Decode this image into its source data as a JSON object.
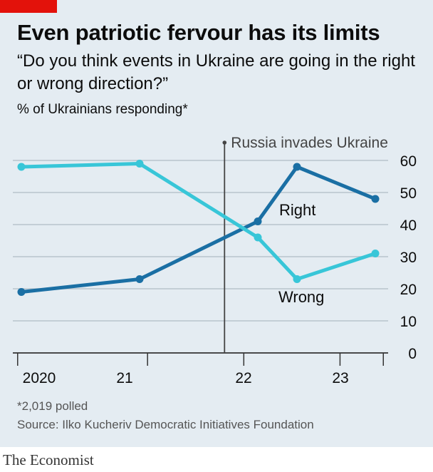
{
  "header": {
    "title": "Even patriotic fervour has its limits",
    "subtitle": "“Do you think events in Ukraine are going in the right or wrong direction?”",
    "unit_note": "% of Ukrainians responding*"
  },
  "footer": {
    "footnote": "*2,019 polled",
    "source": "Source: Ilko Kucheriv Democratic Initiatives Foundation",
    "logo": "The Economist"
  },
  "colors": {
    "right": "#1a6fa4",
    "wrong": "#38c6d8",
    "background": "#e4ecf2",
    "grid": "#b8c3cc",
    "accent": "#e3120b"
  },
  "chart_data": {
    "type": "line",
    "x_axis": {
      "min": 2019.95,
      "max": 2023.85,
      "year_boundaries": [
        2020,
        2021,
        2022,
        2023
      ],
      "labels": [
        {
          "text": "2020",
          "x": 2020.0
        },
        {
          "text": "21",
          "x": 2021.0
        },
        {
          "text": "22",
          "x": 2022.0
        },
        {
          "text": "23",
          "x": 2023.0
        }
      ]
    },
    "y_axis": {
      "min": 0,
      "max": 60,
      "ticks": [
        0,
        10,
        20,
        30,
        40,
        50,
        60
      ],
      "position": "right",
      "grid": true
    },
    "annotation": {
      "text": "Russia invades Ukraine",
      "x": 2022.15
    },
    "series": [
      {
        "name": "Right",
        "color": "#1a6fa4",
        "x": [
          2020.0,
          2021.25,
          2022.75,
          2023.25,
          2023.75
        ],
        "y": [
          19,
          23,
          41,
          58,
          48
        ],
        "label_pos": {
          "x": 2023.35,
          "y": 43
        }
      },
      {
        "name": "Wrong",
        "color": "#38c6d8",
        "x": [
          2020.0,
          2021.25,
          2022.75,
          2023.25,
          2023.75
        ],
        "y": [
          58,
          59,
          36,
          23,
          31
        ],
        "label_pos": {
          "x": 2023.2,
          "y": 16
        }
      }
    ]
  }
}
